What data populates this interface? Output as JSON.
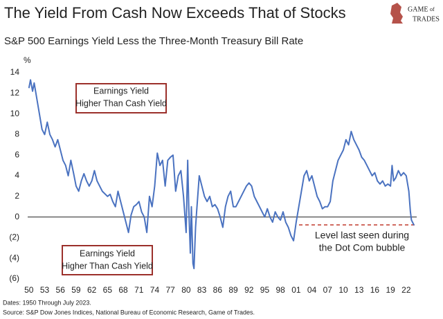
{
  "chart_data": {
    "type": "line",
    "title": "The Yield From Cash Now Exceeds That of Stocks",
    "subtitle": "S&P 500 Earnings Yield Less the Three-Month Treasury Bill Rate",
    "y_unit": "%",
    "logo": [
      "GAME",
      "of",
      "TRADES"
    ],
    "annotations": [
      "Earnings Yield",
      "Higher Than Cash Yield",
      "Earnings Yield",
      "Higher Than Cash Yield",
      "Level last seen during",
      "the Dot Com bubble"
    ],
    "notes": [
      "Dates: 1950 Through July 2023.",
      "Source: S&P Dow Jones Indices, National Bureau of Economic Research, Game of Trades."
    ],
    "x": [
      1950,
      1950.3,
      1950.7,
      1951,
      1951.5,
      1952,
      1952.5,
      1953,
      1953.5,
      1954,
      1954.5,
      1955,
      1955.5,
      1956,
      1956.5,
      1957,
      1957.5,
      1958,
      1958.5,
      1959,
      1959.5,
      1960,
      1960.5,
      1961,
      1961.5,
      1962,
      1962.5,
      1963,
      1963.5,
      1964,
      1965,
      1965.5,
      1966,
      1966.5,
      1967,
      1967.5,
      1968,
      1968.5,
      1969,
      1969.5,
      1970,
      1970.5,
      1971,
      1971.5,
      1972,
      1972.5,
      1973,
      1973.5,
      1974,
      1974.5,
      1975,
      1975.5,
      1976,
      1976.5,
      1977,
      1977.5,
      1978,
      1978.5,
      1979,
      1979.5,
      1980,
      1980.3,
      1980.5,
      1980.8,
      1981,
      1981.3,
      1981.5,
      1981.8,
      1982,
      1982.5,
      1983,
      1983.5,
      1984,
      1984.5,
      1985,
      1985.5,
      1986,
      1986.5,
      1987,
      1987.5,
      1988,
      1988.5,
      1989,
      1989.5,
      1990,
      1990.5,
      1991,
      1991.5,
      1992,
      1992.5,
      1993,
      1993.5,
      1994,
      1994.5,
      1995,
      1995.5,
      1996,
      1996.5,
      1997,
      1997.5,
      1998,
      1998.5,
      1999,
      1999.5,
      2000,
      2000.5,
      2001,
      2001.5,
      2002,
      2002.5,
      2003,
      2003.5,
      2004,
      2004.5,
      2005,
      2005.5,
      2006,
      2006.5,
      2007,
      2007.5,
      2008,
      2008.5,
      2009,
      2009.5,
      2010,
      2010.5,
      2011,
      2011.5,
      2012,
      2012.5,
      2013,
      2013.5,
      2014,
      2014.5,
      2015,
      2015.5,
      2016,
      2016.5,
      2017,
      2017.5,
      2018,
      2018.5,
      2019,
      2019.3,
      2019.6,
      2020,
      2020.5,
      2021,
      2021.5,
      2022,
      2022.5,
      2022.8,
      2023,
      2023.5
    ],
    "series": [
      {
        "name": "Earnings yield less T-bill rate",
        "color": "#4a72c0",
        "values": [
          12.5,
          13.3,
          12.2,
          13.0,
          11.5,
          10.0,
          8.5,
          8.0,
          9.2,
          8.0,
          7.5,
          6.8,
          7.5,
          6.5,
          5.5,
          5.0,
          4.0,
          5.5,
          4.3,
          3.0,
          2.5,
          3.5,
          4.2,
          3.5,
          3.0,
          3.5,
          4.5,
          3.5,
          3.0,
          2.5,
          2.0,
          2.2,
          1.5,
          1.0,
          2.5,
          1.5,
          0.5,
          -0.5,
          -1.5,
          0.2,
          1.0,
          1.2,
          1.5,
          0.5,
          0.0,
          -1.5,
          2.0,
          1.0,
          3.0,
          6.2,
          5.0,
          5.5,
          3.0,
          5.5,
          5.8,
          6.0,
          2.5,
          4.0,
          4.5,
          2.0,
          -1.5,
          5.5,
          1.0,
          -3.5,
          1.0,
          -4.5,
          -5.0,
          -1.0,
          0.5,
          4.0,
          3.0,
          2.0,
          1.5,
          2.0,
          1.0,
          1.2,
          0.8,
          0.0,
          -1.0,
          1.0,
          2.0,
          2.5,
          1.0,
          1.0,
          1.5,
          2.0,
          2.5,
          3.0,
          3.3,
          3.0,
          2.0,
          1.5,
          1.0,
          0.5,
          0.0,
          0.8,
          0.0,
          -0.5,
          0.5,
          0.0,
          -0.3,
          0.5,
          -0.5,
          -1.0,
          -1.8,
          -2.3,
          -0.5,
          1.0,
          2.5,
          4.0,
          4.5,
          3.5,
          4.0,
          3.0,
          2.0,
          1.5,
          0.8,
          1.0,
          1.0,
          1.5,
          3.5,
          4.5,
          5.5,
          6.0,
          6.5,
          7.5,
          7.0,
          8.3,
          7.5,
          7.0,
          6.5,
          5.8,
          5.5,
          5.0,
          4.5,
          4.0,
          4.3,
          3.5,
          3.2,
          3.5,
          3.0,
          3.2,
          3.0,
          5.0,
          3.5,
          3.8,
          4.5,
          4.0,
          4.3,
          4.0,
          2.5,
          0.5,
          -0.3,
          -0.8
        ]
      }
    ],
    "xlim": [
      1949.5,
      2024
    ],
    "xticks": [
      {
        "value": 1950,
        "label": "50"
      },
      {
        "value": 1953,
        "label": "53"
      },
      {
        "value": 1956,
        "label": "56"
      },
      {
        "value": 1959,
        "label": "59"
      },
      {
        "value": 1962,
        "label": "62"
      },
      {
        "value": 1965,
        "label": "65"
      },
      {
        "value": 1968,
        "label": "68"
      },
      {
        "value": 1971,
        "label": "71"
      },
      {
        "value": 1974,
        "label": "74"
      },
      {
        "value": 1977,
        "label": "77"
      },
      {
        "value": 1980,
        "label": "80"
      },
      {
        "value": 1983,
        "label": "83"
      },
      {
        "value": 1986,
        "label": "86"
      },
      {
        "value": 1989,
        "label": "89"
      },
      {
        "value": 1992,
        "label": "92"
      },
      {
        "value": 1995,
        "label": "95"
      },
      {
        "value": 1998,
        "label": "98"
      },
      {
        "value": 2001,
        "label": "01"
      },
      {
        "value": 2004,
        "label": "04"
      },
      {
        "value": 2007,
        "label": "07"
      },
      {
        "value": 2010,
        "label": "10"
      },
      {
        "value": 2013,
        "label": "13"
      },
      {
        "value": 2016,
        "label": "16"
      },
      {
        "value": 2019,
        "label": "19"
      },
      {
        "value": 2022,
        "label": "22"
      }
    ],
    "ylim": [
      -6,
      14
    ],
    "yticks": [
      14,
      12,
      10,
      8,
      6,
      4,
      2,
      0,
      {
        "value": -2,
        "label": "(2)"
      },
      {
        "value": -4,
        "label": "(4)"
      },
      {
        "value": -6,
        "label": "(6)"
      }
    ]
  }
}
